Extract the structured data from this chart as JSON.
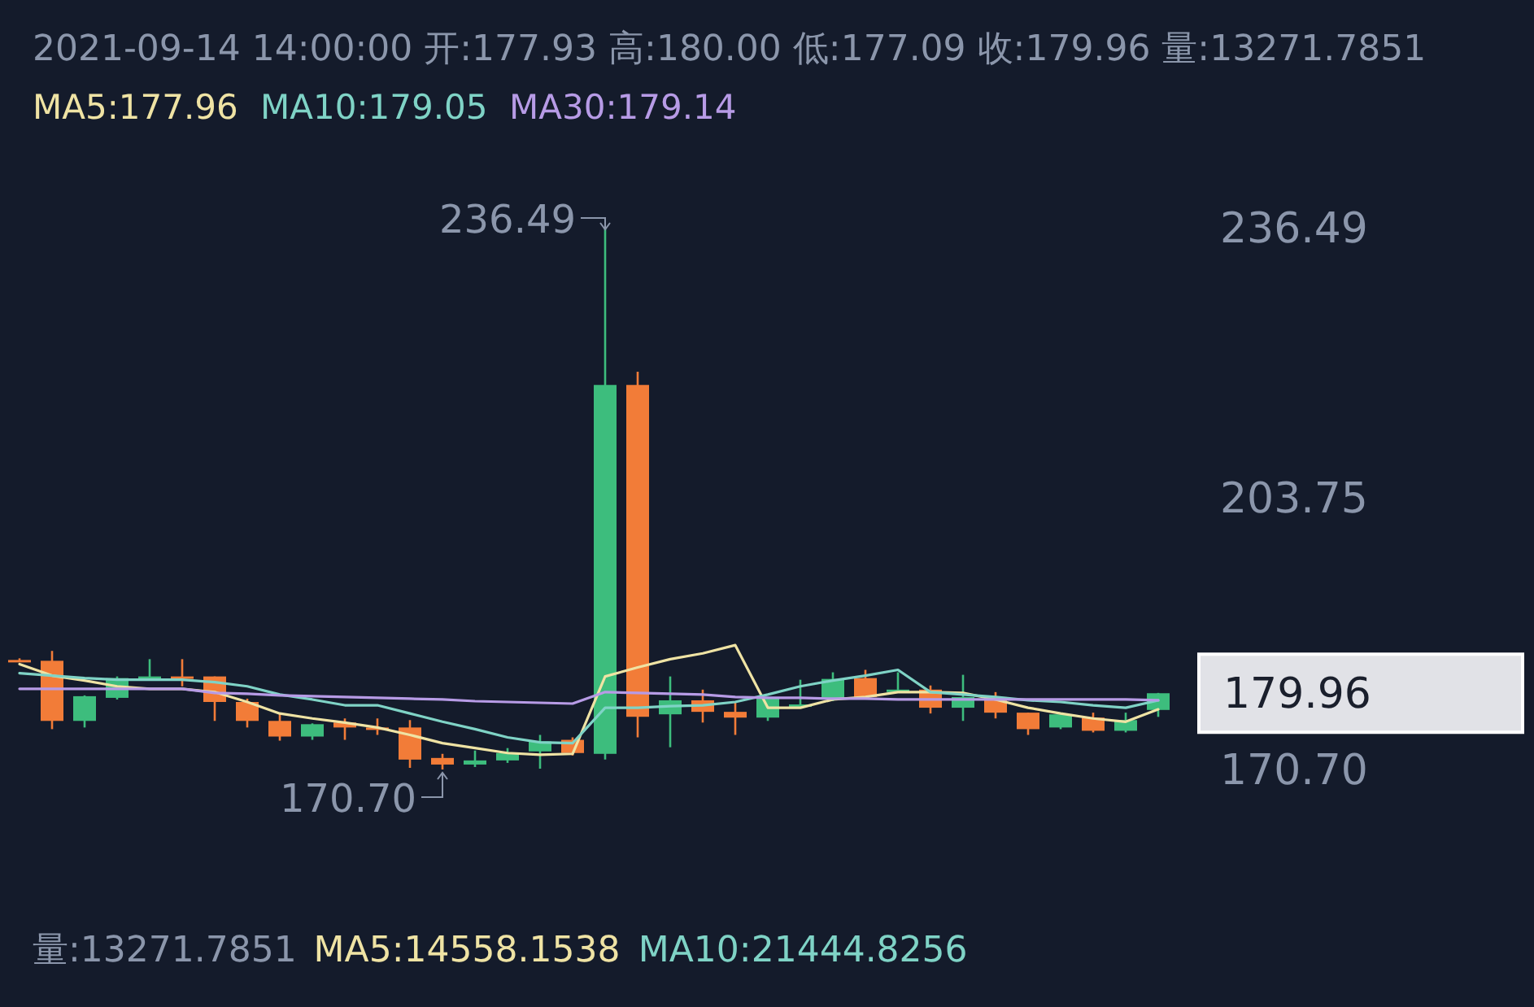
{
  "chart_data": {
    "type": "candlestick",
    "title": "2021-09-14 14:00:00 开:177.93 高:180.00 低:177.09 收:179.96 量:13271.7851",
    "categories": [
      null,
      null,
      null,
      null,
      null,
      null,
      null,
      null,
      null,
      null,
      null,
      null,
      null,
      null,
      null,
      null,
      null,
      null,
      null,
      null,
      null,
      null,
      null,
      null,
      null,
      null,
      null,
      null,
      null,
      null,
      null,
      null,
      null,
      null,
      null,
      null
    ],
    "ohlc": [
      [
        184.0,
        184.2,
        183.8,
        183.9
      ],
      [
        183.9,
        185.1,
        175.6,
        176.6
      ],
      [
        176.6,
        179.7,
        175.8,
        179.6
      ],
      [
        179.4,
        182.0,
        179.2,
        181.8
      ],
      [
        181.9,
        184.1,
        181.7,
        182.0
      ],
      [
        182.0,
        184.1,
        180.8,
        181.9
      ],
      [
        182.0,
        182.0,
        176.6,
        178.9
      ],
      [
        178.9,
        179.3,
        175.8,
        176.6
      ],
      [
        176.6,
        177.6,
        174.2,
        174.7
      ],
      [
        174.7,
        176.3,
        174.3,
        176.2
      ],
      [
        176.4,
        176.9,
        174.3,
        175.8
      ],
      [
        175.8,
        176.9,
        174.9,
        175.7
      ],
      [
        175.8,
        176.7,
        170.9,
        171.9
      ],
      [
        172.1,
        172.6,
        170.7,
        171.3
      ],
      [
        171.3,
        173.0,
        171.0,
        171.8
      ],
      [
        171.8,
        173.3,
        171.5,
        172.7
      ],
      [
        172.9,
        174.9,
        170.8,
        174.1
      ],
      [
        174.3,
        174.6,
        172.4,
        172.7
      ],
      [
        172.6,
        236.49,
        171.9,
        217.4
      ],
      [
        217.4,
        219.0,
        174.6,
        177.1
      ],
      [
        177.4,
        182.0,
        173.4,
        179.1
      ],
      [
        179.1,
        180.4,
        176.4,
        177.7
      ],
      [
        177.7,
        178.9,
        174.9,
        177.0
      ],
      [
        177.0,
        179.5,
        176.6,
        179.3
      ],
      [
        178.5,
        181.6,
        178.2,
        178.6
      ],
      [
        179.3,
        182.5,
        179.0,
        181.7
      ],
      [
        181.8,
        182.8,
        179.2,
        179.5
      ],
      [
        180.3,
        182.5,
        180.1,
        180.4
      ],
      [
        180.4,
        180.9,
        177.5,
        178.2
      ],
      [
        178.2,
        182.2,
        176.6,
        179.5
      ],
      [
        179.5,
        180.1,
        176.9,
        177.6
      ],
      [
        177.6,
        177.6,
        174.9,
        175.6
      ],
      [
        175.8,
        177.6,
        175.6,
        177.4
      ],
      [
        177.0,
        177.6,
        175.2,
        175.4
      ],
      [
        175.4,
        177.6,
        175.2,
        176.7
      ],
      [
        177.93,
        180.0,
        177.09,
        179.96
      ]
    ],
    "colors": [
      "#f27c38",
      "#f27c38",
      "#3dbd7d",
      "#3dbd7d",
      "#3dbd7d",
      "#f27c38",
      "#f27c38",
      "#f27c38",
      "#f27c38",
      "#3dbd7d",
      "#f27c38",
      "#f27c38",
      "#f27c38",
      "#f27c38",
      "#3dbd7d",
      "#3dbd7d",
      "#3dbd7d",
      "#f27c38",
      "#3dbd7d",
      "#f27c38",
      "#3dbd7d",
      "#f27c38",
      "#f27c38",
      "#3dbd7d",
      "#3dbd7d",
      "#3dbd7d",
      "#f27c38",
      "#3dbd7d",
      "#f27c38",
      "#3dbd7d",
      "#f27c38",
      "#f27c38",
      "#3dbd7d",
      "#f27c38",
      "#3dbd7d",
      "#3dbd7d"
    ],
    "series": [
      {
        "name": "MA5:177.96",
        "type": "line",
        "color": "#efe3a4",
        "values": [
          183.5,
          182.1,
          181.5,
          180.8,
          180.5,
          180.5,
          180.1,
          178.9,
          177.5,
          176.9,
          176.4,
          175.8,
          174.9,
          173.9,
          173.3,
          172.7,
          172.5,
          172.6,
          182.0,
          183.1,
          184.1,
          184.8,
          185.8,
          178.2,
          178.2,
          179.2,
          179.5,
          180.1,
          180.1,
          180.0,
          179.2,
          178.2,
          177.5,
          176.9,
          176.5,
          178.0
        ]
      },
      {
        "name": "MA10:179.05",
        "type": "line",
        "color": "#7fd3c6",
        "values": [
          182.4,
          182.1,
          181.8,
          181.6,
          181.6,
          181.6,
          181.3,
          180.8,
          179.8,
          179.2,
          178.5,
          178.5,
          177.5,
          176.5,
          175.6,
          174.6,
          174.0,
          173.9,
          178.2,
          178.2,
          178.4,
          178.5,
          178.9,
          179.8,
          180.8,
          181.5,
          182.1,
          182.8,
          180.1,
          179.8,
          179.5,
          179.1,
          178.9,
          178.5,
          178.2,
          179.1
        ]
      },
      {
        "name": "MA30:179.14",
        "type": "line",
        "color": "#b79be6",
        "values": [
          180.5,
          180.5,
          180.5,
          180.5,
          180.5,
          180.5,
          180.0,
          179.9,
          179.7,
          179.6,
          179.5,
          179.4,
          179.3,
          179.2,
          179.0,
          178.9,
          178.8,
          178.7,
          180.1,
          180.0,
          179.9,
          179.8,
          179.5,
          179.4,
          179.4,
          179.3,
          179.3,
          179.2,
          179.2,
          179.2,
          179.2,
          179.2,
          179.2,
          179.2,
          179.2,
          179.1
        ]
      }
    ],
    "ylim": [
      170.7,
      236.49
    ],
    "yticks": [
      236.49,
      203.75,
      {
        "value": 170.7,
        "label": "170.70"
      }
    ],
    "annotations": [
      "236.49",
      "170.70",
      "179.96",
      "量:13271.7851",
      "MA5:14558.1538",
      "MA10:21444.8256"
    ]
  }
}
